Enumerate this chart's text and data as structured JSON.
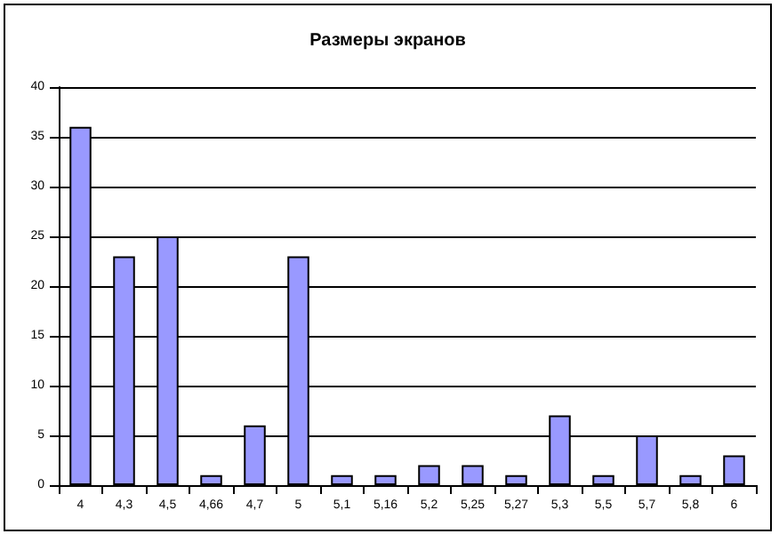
{
  "chart_data": {
    "type": "bar",
    "title": "Размеры экранов",
    "categories": [
      "4",
      "4,3",
      "4,5",
      "4,66",
      "4,7",
      "5",
      "5,1",
      "5,16",
      "5,2",
      "5,25",
      "5,27",
      "5,3",
      "5,5",
      "5,7",
      "5,8",
      "6"
    ],
    "values": [
      36,
      23,
      25,
      1,
      6,
      23,
      1,
      1,
      2,
      2,
      1,
      7,
      1,
      5,
      1,
      3
    ],
    "color": "#9999ff",
    "ylim": [
      0,
      40
    ],
    "yticks": [
      0,
      5,
      10,
      15,
      20,
      25,
      30,
      35,
      40
    ],
    "grid": "y"
  }
}
